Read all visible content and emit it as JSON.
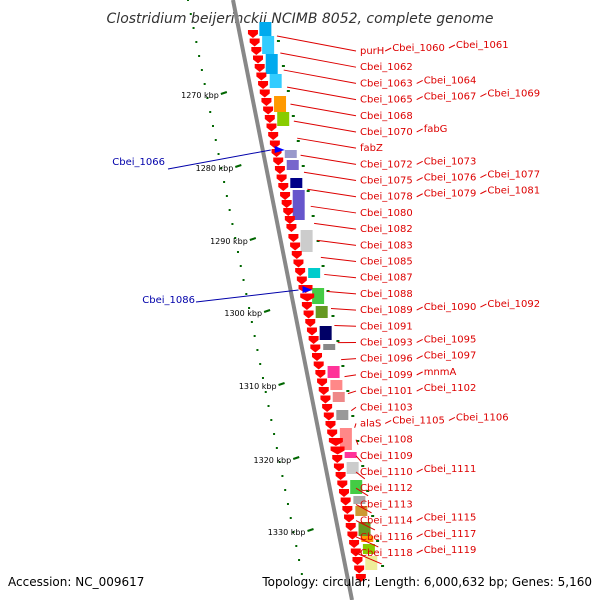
{
  "title": "Clostridium beijerinckii NCIMB 8052, complete genome",
  "accession": "Accession: NC_009617",
  "topology": "Topology: circular; Length: 6,000,632 bp; Genes: 5,160",
  "colors": {
    "forward_label": "#dd0000",
    "reverse_label": "#0000aa",
    "gene_arrow": "#ff0000",
    "reverse_marker": "#0000ff",
    "tick": "#006600",
    "backbone": "#888888"
  },
  "ticks": [
    "1270 kbp",
    "1280 kbp",
    "1290 kbp",
    "1300 kbp",
    "1310 kbp",
    "1320 kbp",
    "1330 kbp"
  ],
  "reverse_genes": [
    "Cbei_1066",
    "Cbei_1086"
  ],
  "forward_genes": [
    [
      "purH",
      "Cbei_1060",
      "Cbei_1061"
    ],
    [
      "Cbei_1062"
    ],
    [
      "Cbei_1063",
      "Cbei_1064"
    ],
    [
      "Cbei_1065",
      "Cbei_1067",
      "Cbei_1069"
    ],
    [
      "Cbei_1068"
    ],
    [
      "Cbei_1070",
      "fabG"
    ],
    [
      "fabZ"
    ],
    [
      "Cbei_1072",
      "Cbei_1073"
    ],
    [
      "Cbei_1075",
      "Cbei_1076",
      "Cbei_1077"
    ],
    [
      "Cbei_1078",
      "Cbei_1079",
      "Cbei_1081"
    ],
    [
      "Cbei_1080"
    ],
    [
      "Cbei_1082"
    ],
    [
      "Cbei_1083"
    ],
    [
      "Cbei_1085"
    ],
    [
      "Cbei_1087"
    ],
    [
      "Cbei_1088"
    ],
    [
      "Cbei_1089",
      "Cbei_1090",
      "Cbei_1092"
    ],
    [
      "Cbei_1091"
    ],
    [
      "Cbei_1093",
      "Cbei_1095"
    ],
    [
      "Cbei_1096",
      "Cbei_1097"
    ],
    [
      "Cbei_1099",
      "mnmA"
    ],
    [
      "Cbei_1101",
      "Cbei_1102"
    ],
    [
      "Cbei_1103"
    ],
    [
      "alaS",
      "Cbei_1105",
      "Cbei_1106"
    ],
    [
      "Cbei_1108"
    ],
    [
      "Cbei_1109"
    ],
    [
      "Cbei_1110",
      "Cbei_1111"
    ],
    [
      "Cbei_1112"
    ],
    [
      "Cbei_1113"
    ],
    [
      "Cbei_1114",
      "Cbei_1115"
    ],
    [
      "Cbei_1116",
      "Cbei_1117"
    ],
    [
      "Cbei_1118",
      "Cbei_1119"
    ]
  ],
  "feature_colors": [
    "#00aaee",
    "#33ccff",
    "#9999cc",
    "#7766cc",
    "#6655cc",
    "#000088",
    "#cccccc",
    "#aaaaaa",
    "#00cccc",
    "#44cc44",
    "#669922",
    "#000066",
    "#ff3399",
    "#ff8888",
    "#ee8888",
    "#ff9900",
    "#88cc00",
    "#eeee99",
    "#888888",
    "#cc9933",
    "#999999"
  ]
}
